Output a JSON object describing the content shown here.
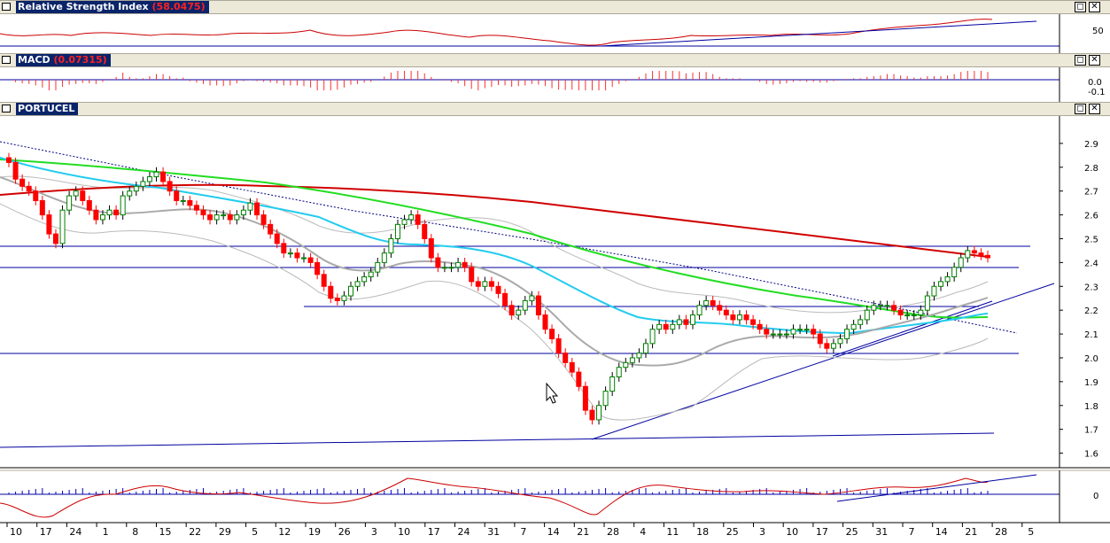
{
  "panels": {
    "rsi": {
      "name": "Relative Strength Index",
      "value": "(58.0475)",
      "ytick": "50"
    },
    "macd": {
      "name": "MACD",
      "value": "(0.07315)",
      "yticks": [
        "0.0",
        "-0.1"
      ]
    },
    "price": {
      "name": "PORTUCEL"
    },
    "oscillator": {
      "ytick": "0"
    }
  },
  "window_buttons": {
    "restore": "◻",
    "close": "✕"
  },
  "colors": {
    "up_candle": "#008000",
    "down_candle": "#ff0000",
    "trendline": "#0000a0",
    "ma_long": "#d00000",
    "ma_mid": "#22dd22",
    "ma_short": "#22ccee",
    "ma_gray": "#aaaaaa",
    "rsi_line": "#cc0000",
    "macd_hist": "#ff3030"
  },
  "chart_data": {
    "type": "candlestick",
    "series_name": "PORTUCEL",
    "ylim": [
      1.55,
      3.0
    ],
    "y_ticks": [
      "2.9",
      "2.8",
      "2.7",
      "2.6",
      "2.5",
      "2.4",
      "2.3",
      "2.2",
      "2.1",
      "2.0",
      "1.9",
      "1.8",
      "1.7",
      "1.6"
    ],
    "x_ticks": [
      "10",
      "17",
      "24",
      "1",
      "8",
      "15",
      "22",
      "29",
      "5",
      "12",
      "19",
      "26",
      "3",
      "10",
      "17",
      "24",
      "31",
      "7",
      "14",
      "21",
      "28",
      "4",
      "11",
      "18",
      "25",
      "3",
      "10",
      "17",
      "25",
      "31",
      "7",
      "14",
      "21",
      "28",
      "5"
    ],
    "closes": [
      2.82,
      2.75,
      2.72,
      2.7,
      2.66,
      2.6,
      2.52,
      2.48,
      2.62,
      2.68,
      2.7,
      2.66,
      2.62,
      2.58,
      2.6,
      2.62,
      2.6,
      2.68,
      2.7,
      2.72,
      2.74,
      2.76,
      2.78,
      2.74,
      2.7,
      2.66,
      2.66,
      2.64,
      2.62,
      2.6,
      2.58,
      2.6,
      2.6,
      2.58,
      2.6,
      2.62,
      2.65,
      2.6,
      2.56,
      2.52,
      2.48,
      2.44,
      2.44,
      2.42,
      2.42,
      2.4,
      2.35,
      2.3,
      2.25,
      2.24,
      2.26,
      2.3,
      2.32,
      2.34,
      2.36,
      2.4,
      2.44,
      2.5,
      2.56,
      2.58,
      2.6,
      2.56,
      2.5,
      2.42,
      2.38,
      2.38,
      2.38,
      2.4,
      2.38,
      2.32,
      2.3,
      2.32,
      2.3,
      2.27,
      2.22,
      2.18,
      2.2,
      2.24,
      2.26,
      2.18,
      2.12,
      2.08,
      2.02,
      1.98,
      1.94,
      1.88,
      1.78,
      1.74,
      1.8,
      1.86,
      1.92,
      1.96,
      1.98,
      2.0,
      2.02,
      2.06,
      2.12,
      2.14,
      2.12,
      2.14,
      2.16,
      2.14,
      2.18,
      2.22,
      2.24,
      2.22,
      2.2,
      2.18,
      2.16,
      2.18,
      2.16,
      2.14,
      2.12,
      2.1,
      2.1,
      2.1,
      2.1,
      2.12,
      2.12,
      2.12,
      2.1,
      2.06,
      2.04,
      2.06,
      2.08,
      2.12,
      2.14,
      2.16,
      2.2,
      2.22,
      2.22,
      2.22,
      2.2,
      2.18,
      2.18,
      2.18,
      2.2,
      2.26,
      2.3,
      2.32,
      2.34,
      2.38,
      2.42,
      2.45,
      2.44,
      2.43,
      2.42
    ]
  }
}
